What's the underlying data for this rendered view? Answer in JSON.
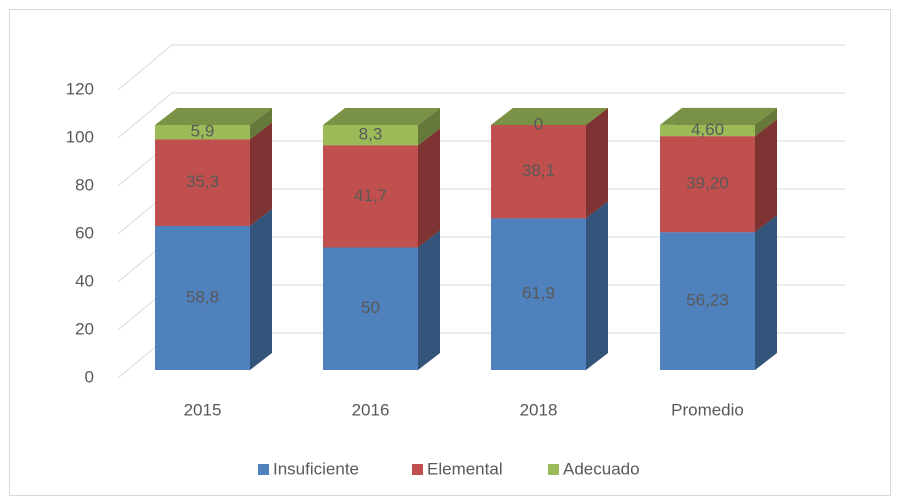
{
  "chart_data": {
    "type": "bar3d_stacked",
    "categories": [
      "2015",
      "2016",
      "2018",
      "Promedio"
    ],
    "series": [
      {
        "name": "Insuficiente",
        "color": "#4f81bd",
        "values": [
          58.8,
          50,
          61.9,
          56.23
        ],
        "value_labels": [
          "58,8",
          "50",
          "61,9",
          "56,23"
        ]
      },
      {
        "name": "Elemental",
        "color": "#c0504d",
        "values": [
          35.3,
          41.7,
          38.1,
          39.2
        ],
        "value_labels": [
          "35,3",
          "41,7",
          "38,1",
          "39,20"
        ]
      },
      {
        "name": "Adecuado",
        "color": "#9bbb59",
        "values": [
          5.9,
          8.3,
          0,
          4.6
        ],
        "value_labels": [
          "5,9",
          "8,3",
          "0",
          "4,60"
        ]
      }
    ],
    "ylim": [
      0,
      120
    ],
    "yticks": [
      0,
      20,
      40,
      60,
      80,
      100,
      120
    ],
    "grid": true,
    "legend": "bottom"
  }
}
